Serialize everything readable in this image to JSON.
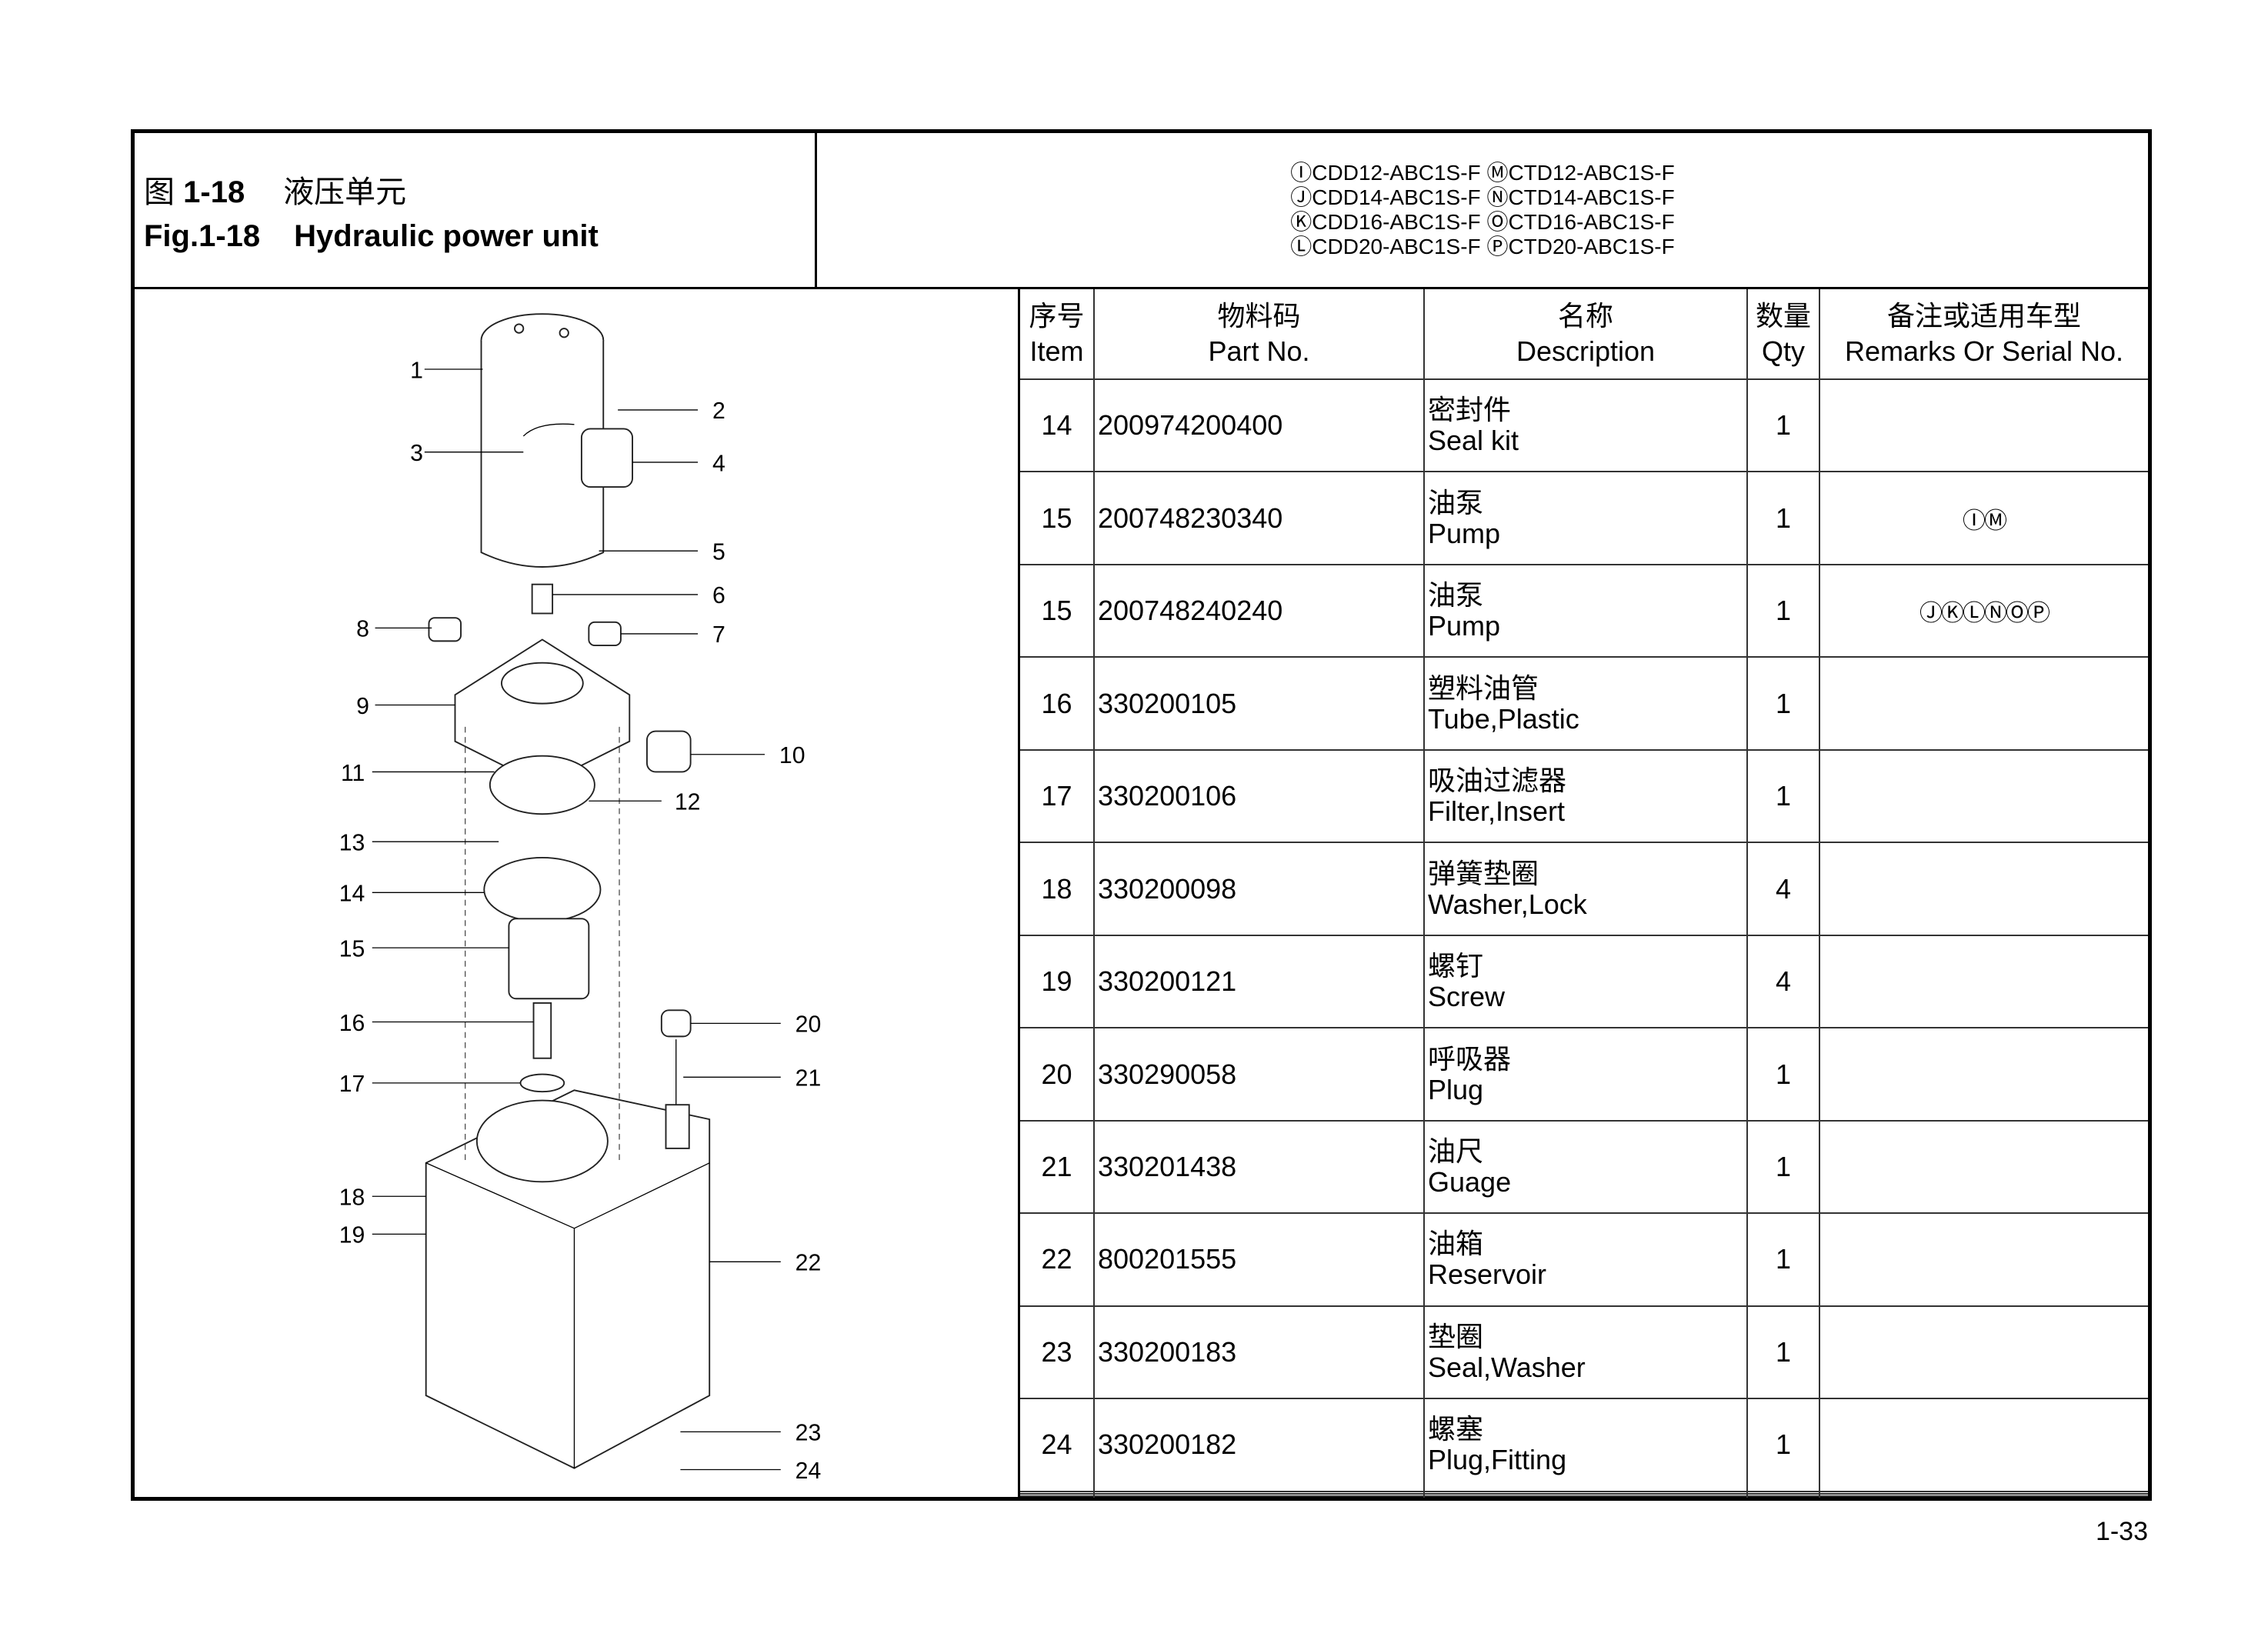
{
  "title": {
    "cn_prefix": "图",
    "cn_number": "1-18",
    "cn_name": "液压单元",
    "en_number": "Fig.1-18",
    "en_name": "Hydraulic power unit"
  },
  "models": [
    "ⒾCDD12-ABC1S-F ⓂCTD12-ABC1S-F",
    "ⒿCDD14-ABC1S-F ⓃCTD14-ABC1S-F",
    "ⓀCDD16-ABC1S-F ⓄCTD16-ABC1S-F",
    "ⓁCDD20-ABC1S-F ⓅCTD20-ABC1S-F"
  ],
  "table": {
    "headers": [
      {
        "cn": "序号",
        "en": "Item"
      },
      {
        "cn": "物料码",
        "en": "Part No."
      },
      {
        "cn": "名称",
        "en": "Description"
      },
      {
        "cn": "数量",
        "en": "Qty"
      },
      {
        "cn": "备注或适用车型",
        "en": "Remarks Or Serial No."
      }
    ],
    "rows": [
      {
        "item": "14",
        "part": "200974200400",
        "cn": "密封件",
        "en": "Seal kit",
        "qty": "1",
        "remark": ""
      },
      {
        "item": "15",
        "part": "200748230340",
        "cn": "油泵",
        "en": "Pump",
        "qty": "1",
        "remark": "ⒾⓂ"
      },
      {
        "item": "15",
        "part": "200748240240",
        "cn": "油泵",
        "en": "Pump",
        "qty": "1",
        "remark": "ⒿⓀⓁⓃⓄⓅ"
      },
      {
        "item": "16",
        "part": "330200105",
        "cn": "塑料油管",
        "en": "Tube,Plastic",
        "qty": "1",
        "remark": ""
      },
      {
        "item": "17",
        "part": "330200106",
        "cn": "吸油过滤器",
        "en": "Filter,Insert",
        "qty": "1",
        "remark": ""
      },
      {
        "item": "18",
        "part": "330200098",
        "cn": "弹簧垫圈",
        "en": "Washer,Lock",
        "qty": "4",
        "remark": ""
      },
      {
        "item": "19",
        "part": "330200121",
        "cn": "螺钉",
        "en": "Screw",
        "qty": "4",
        "remark": ""
      },
      {
        "item": "20",
        "part": "330290058",
        "cn": "呼吸器",
        "en": "Plug",
        "qty": "1",
        "remark": ""
      },
      {
        "item": "21",
        "part": "330201438",
        "cn": "油尺",
        "en": "Guage",
        "qty": "1",
        "remark": ""
      },
      {
        "item": "22",
        "part": "800201555",
        "cn": "油箱",
        "en": "Reservoir",
        "qty": "1",
        "remark": ""
      },
      {
        "item": "23",
        "part": "330200183",
        "cn": "垫圈",
        "en": "Seal,Washer",
        "qty": "1",
        "remark": ""
      },
      {
        "item": "24",
        "part": "330200182",
        "cn": "螺塞",
        "en": "Plug,Fitting",
        "qty": "1",
        "remark": ""
      },
      {
        "item": "",
        "part": "",
        "cn": "",
        "en": "",
        "qty": "",
        "remark": ""
      },
      {
        "item": "",
        "part": "",
        "cn": "",
        "en": "",
        "qty": "",
        "remark": ""
      },
      {
        "item": "",
        "part": "",
        "cn": "",
        "en": "",
        "qty": "",
        "remark": ""
      }
    ]
  },
  "callouts": [
    "1",
    "2",
    "3",
    "4",
    "5",
    "6",
    "7",
    "8",
    "9",
    "10",
    "11",
    "12",
    "13",
    "14",
    "15",
    "16",
    "17",
    "18",
    "19",
    "20",
    "21",
    "22",
    "23",
    "24"
  ],
  "page_number": "1-33"
}
